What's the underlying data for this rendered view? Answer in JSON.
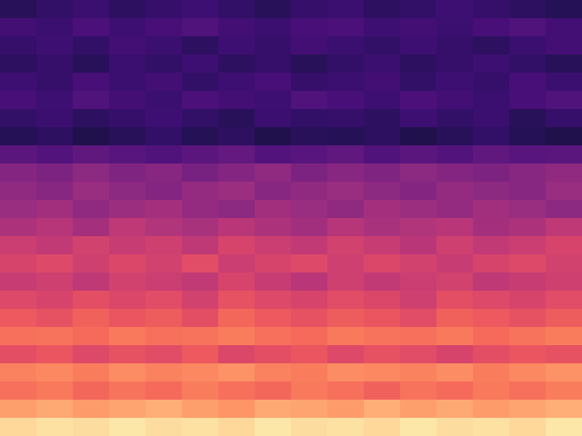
{
  "chart_data": {
    "type": "heatmap",
    "color": "magma",
    "tick_labels": false,
    "clim": [
      0,
      100
    ],
    "cells": [
      [
        16,
        18,
        20,
        17,
        19,
        21,
        18,
        16,
        19,
        20,
        17,
        18,
        21,
        19,
        17,
        15
      ],
      [
        22,
        20,
        24,
        21,
        23,
        25,
        22,
        20,
        23,
        24,
        21,
        22,
        20,
        23,
        25,
        22
      ],
      [
        19,
        21,
        18,
        22,
        20,
        17,
        21,
        19,
        22,
        20,
        18,
        21,
        19,
        17,
        20,
        22
      ],
      [
        17,
        19,
        16,
        20,
        18,
        21,
        17,
        19,
        16,
        18,
        20,
        17,
        19,
        21,
        18,
        16
      ],
      [
        21,
        19,
        23,
        20,
        22,
        18,
        21,
        23,
        19,
        20,
        22,
        18,
        21,
        19,
        23,
        20
      ],
      [
        23,
        21,
        25,
        22,
        20,
        24,
        22,
        21,
        25,
        23,
        21,
        24,
        22,
        20,
        23,
        25
      ],
      [
        18,
        20,
        17,
        19,
        21,
        18,
        16,
        20,
        18,
        19,
        17,
        21,
        18,
        20,
        16,
        19
      ],
      [
        15,
        17,
        14,
        16,
        18,
        15,
        17,
        14,
        16,
        15,
        17,
        14,
        16,
        18,
        15,
        14
      ],
      [
        28,
        26,
        29,
        27,
        25,
        28,
        30,
        26,
        27,
        29,
        25,
        28,
        26,
        29,
        27,
        28
      ],
      [
        38,
        36,
        40,
        37,
        39,
        35,
        38,
        41,
        36,
        39,
        37,
        40,
        38,
        36,
        39,
        41
      ],
      [
        41,
        39,
        43,
        40,
        38,
        42,
        44,
        39,
        41,
        43,
        40,
        38,
        42,
        40,
        39,
        43
      ],
      [
        43,
        45,
        41,
        44,
        46,
        42,
        40,
        45,
        43,
        41,
        46,
        44,
        42,
        45,
        43,
        40
      ],
      [
        48,
        50,
        46,
        52,
        49,
        47,
        51,
        48,
        45,
        50,
        47,
        49,
        51,
        46,
        48,
        52
      ],
      [
        55,
        53,
        57,
        54,
        56,
        52,
        58,
        55,
        53,
        57,
        54,
        51,
        56,
        53,
        55,
        58
      ],
      [
        58,
        60,
        56,
        59,
        57,
        61,
        55,
        58,
        60,
        56,
        59,
        57,
        54,
        58,
        60,
        57
      ],
      [
        54,
        56,
        52,
        57,
        55,
        53,
        58,
        54,
        51,
        56,
        53,
        55,
        57,
        52,
        54,
        56
      ],
      [
        60,
        58,
        62,
        59,
        61,
        57,
        63,
        60,
        58,
        61,
        59,
        56,
        62,
        60,
        58,
        61
      ],
      [
        65,
        63,
        67,
        64,
        66,
        62,
        68,
        65,
        63,
        66,
        64,
        61,
        67,
        65,
        63,
        66
      ],
      [
        70,
        71,
        69,
        72,
        70,
        71,
        73,
        70,
        69,
        72,
        71,
        70,
        72,
        69,
        71,
        73
      ],
      [
        62,
        64,
        60,
        63,
        61,
        65,
        59,
        62,
        64,
        60,
        63,
        61,
        58,
        62,
        64,
        63
      ],
      [
        74,
        75,
        73,
        76,
        74,
        75,
        77,
        74,
        73,
        76,
        75,
        74,
        76,
        73,
        75,
        77
      ],
      [
        70,
        72,
        68,
        71,
        69,
        73,
        70,
        68,
        72,
        70,
        67,
        71,
        69,
        72,
        70,
        73
      ],
      [
        80,
        82,
        79,
        81,
        83,
        80,
        78,
        82,
        81,
        79,
        83,
        80,
        82,
        79,
        81,
        83
      ],
      [
        92,
        94,
        93,
        95,
        93,
        94,
        92,
        95,
        93,
        94,
        92,
        95,
        93,
        94,
        92,
        95
      ]
    ]
  }
}
